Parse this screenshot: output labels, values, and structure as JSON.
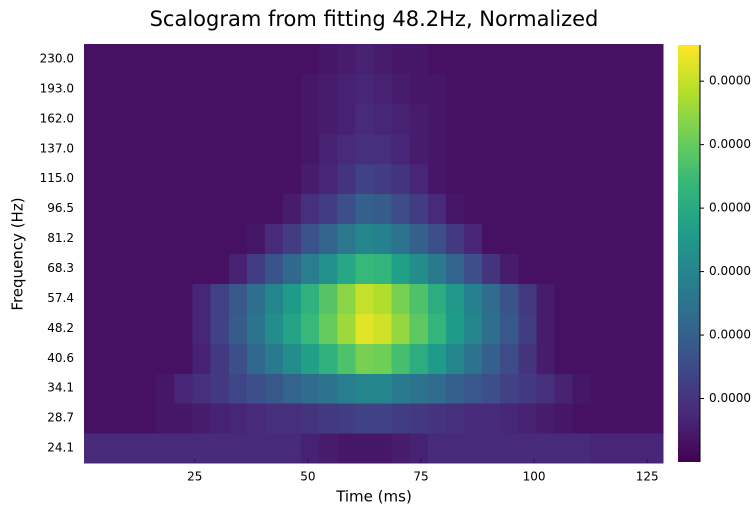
{
  "chart_data": {
    "type": "heatmap",
    "title": "Scalogram from fitting 48.2Hz, Normalized",
    "xlabel": "Time (ms)",
    "ylabel": "Frequency (Hz)",
    "x": [
      2.5,
      6.5,
      10.5,
      14.5,
      18.5,
      22.5,
      26.5,
      30.5,
      34.5,
      38.5,
      42.5,
      46.5,
      50.5,
      54.5,
      58.5,
      62.5,
      66.5,
      70.5,
      74.5,
      78.5,
      82.5,
      86.5,
      90.5,
      94.5,
      98.5,
      102.5,
      106.5,
      110.5,
      114.5,
      118.5,
      122.5,
      126.5
    ],
    "xlim": [
      0.5,
      128.5
    ],
    "xticks": [
      25,
      50,
      75,
      100,
      125
    ],
    "y_categories": [
      "24.1",
      "28.7",
      "34.1",
      "40.6",
      "48.2",
      "57.4",
      "68.3",
      "81.2",
      "96.5",
      "115.0",
      "137.0",
      "162.0",
      "193.0",
      "230.0"
    ],
    "colormap": "viridis",
    "zlim": [
      0,
      6.57e-05
    ],
    "zticks": [
      {
        "value": 1e-05,
        "label": "0.0000"
      },
      {
        "value": 2e-05,
        "label": "0.0000"
      },
      {
        "value": 3e-05,
        "label": "0.0000"
      },
      {
        "value": 4e-05,
        "label": "0.0000"
      },
      {
        "value": 5e-05,
        "label": "0.0000"
      },
      {
        "value": 6e-05,
        "label": "0.0000"
      }
    ],
    "z": [
      [
        8e-06,
        8e-06,
        8e-06,
        8e-06,
        8e-06,
        8e-06,
        8e-06,
        8e-06,
        8e-06,
        8e-06,
        8e-06,
        8e-06,
        6e-06,
        5e-06,
        4e-06,
        4e-06,
        4e-06,
        5e-06,
        6e-06,
        8e-06,
        8e-06,
        8e-06,
        8e-06,
        8e-06,
        8e-06,
        8e-06,
        8e-06,
        8e-06,
        7e-06,
        7e-06,
        7e-06,
        7e-06
      ],
      [
        3e-06,
        3e-06,
        3e-06,
        3e-06,
        4e-06,
        4e-06,
        5e-06,
        6e-06,
        7e-06,
        8e-06,
        9e-06,
        9e-06,
        1e-05,
        1.1e-05,
        1.2e-05,
        1.3e-05,
        1.3e-05,
        1.2e-05,
        1.1e-05,
        1e-05,
        9e-06,
        8e-06,
        8e-06,
        7e-06,
        6e-06,
        5e-06,
        4e-06,
        3e-06,
        3e-06,
        3e-06,
        3e-06,
        3e-06
      ],
      [
        3e-06,
        3e-06,
        3e-06,
        3e-06,
        4e-06,
        7e-06,
        9e-06,
        1.1e-05,
        1.4e-05,
        1.6e-05,
        1.8e-05,
        2.1e-05,
        2.3e-05,
        2.5e-05,
        2.8e-05,
        3e-05,
        3e-05,
        2.7e-05,
        2.5e-05,
        2.3e-05,
        2e-05,
        1.8e-05,
        1.6e-05,
        1.3e-05,
        1.1e-05,
        9e-06,
        6e-06,
        4e-06,
        3e-06,
        3e-06,
        3e-06,
        3e-06
      ],
      [
        3e-06,
        3e-06,
        3e-06,
        3e-06,
        3e-06,
        3e-06,
        6e-06,
        1.1e-05,
        1.6e-05,
        2.2e-05,
        2.7e-05,
        3.2e-05,
        3.7e-05,
        4.2e-05,
        4.7e-05,
        5.2e-05,
        5.1e-05,
        4.6e-05,
        4.1e-05,
        3.6e-05,
        3e-05,
        2.5e-05,
        2e-05,
        1.5e-05,
        1e-05,
        5e-06,
        3e-06,
        3e-06,
        3e-06,
        3e-06,
        3e-06,
        3e-06
      ],
      [
        3e-06,
        3e-06,
        3e-06,
        3e-06,
        3e-06,
        3e-06,
        7e-06,
        1.3e-05,
        1.9e-05,
        2.5e-05,
        3.2e-05,
        3.8e-05,
        4.4e-05,
        5e-05,
        5.6e-05,
        6.3e-05,
        6.1e-05,
        5.5e-05,
        4.9e-05,
        4.3e-05,
        3.6e-05,
        3e-05,
        2.4e-05,
        1.8e-05,
        1.2e-05,
        5e-06,
        3e-06,
        3e-06,
        3e-06,
        3e-06,
        3e-06,
        3e-06
      ],
      [
        3e-06,
        3e-06,
        3e-06,
        3e-06,
        3e-06,
        3e-06,
        7e-06,
        1.3e-05,
        1.8e-05,
        2.4e-05,
        3e-05,
        3.6e-05,
        4.2e-05,
        4.8e-05,
        5.4e-05,
        6e-05,
        5.8e-05,
        5.2e-05,
        4.7e-05,
        4.1e-05,
        3.5e-05,
        2.9e-05,
        2.3e-05,
        1.7e-05,
        1.1e-05,
        5e-06,
        3e-06,
        3e-06,
        3e-06,
        3e-06,
        3e-06,
        3e-06
      ],
      [
        3e-06,
        3e-06,
        3e-06,
        3e-06,
        3e-06,
        3e-06,
        3e-06,
        3e-06,
        6e-06,
        1.2e-05,
        1.7e-05,
        2.2e-05,
        2.8e-05,
        3.3e-05,
        3.9e-05,
        4.4e-05,
        4.3e-05,
        3.7e-05,
        3.2e-05,
        2.7e-05,
        2.1e-05,
        1.6e-05,
        1e-05,
        5e-06,
        3e-06,
        3e-06,
        3e-06,
        3e-06,
        3e-06,
        3e-06,
        3e-06,
        3e-06
      ],
      [
        3e-06,
        3e-06,
        3e-06,
        3e-06,
        3e-06,
        3e-06,
        3e-06,
        3e-06,
        3e-06,
        4e-06,
        8e-06,
        1.2e-05,
        1.7e-05,
        2.1e-05,
        2.6e-05,
        3e-05,
        2.9e-05,
        2.5e-05,
        2e-05,
        1.6e-05,
        1.1e-05,
        7e-06,
        3e-06,
        3e-06,
        3e-06,
        3e-06,
        3e-06,
        3e-06,
        3e-06,
        3e-06,
        3e-06,
        3e-06
      ],
      [
        3e-06,
        3e-06,
        3e-06,
        3e-06,
        3e-06,
        3e-06,
        3e-06,
        3e-06,
        3e-06,
        3e-06,
        3e-06,
        5e-06,
        9e-06,
        1.2e-05,
        1.6e-05,
        2e-05,
        1.9e-05,
        1.5e-05,
        1.2e-05,
        8e-06,
        4e-06,
        3e-06,
        3e-06,
        3e-06,
        3e-06,
        3e-06,
        3e-06,
        3e-06,
        3e-06,
        3e-06,
        3e-06,
        3e-06
      ],
      [
        3e-06,
        3e-06,
        3e-06,
        3e-06,
        3e-06,
        3e-06,
        3e-06,
        3e-06,
        3e-06,
        3e-06,
        3e-06,
        3e-06,
        5e-06,
        7e-06,
        1e-05,
        1.3e-05,
        1.2e-05,
        1e-05,
        7e-06,
        4e-06,
        3e-06,
        3e-06,
        3e-06,
        3e-06,
        3e-06,
        3e-06,
        3e-06,
        3e-06,
        3e-06,
        3e-06,
        3e-06,
        3e-06
      ],
      [
        3e-06,
        3e-06,
        3e-06,
        3e-06,
        3e-06,
        3e-06,
        3e-06,
        3e-06,
        3e-06,
        3e-06,
        3e-06,
        3e-06,
        4e-06,
        6e-06,
        8e-06,
        9e-06,
        9e-06,
        7e-06,
        5e-06,
        4e-06,
        3e-06,
        3e-06,
        3e-06,
        3e-06,
        3e-06,
        3e-06,
        3e-06,
        3e-06,
        3e-06,
        3e-06,
        3e-06,
        3e-06
      ],
      [
        3e-06,
        3e-06,
        3e-06,
        3e-06,
        3e-06,
        3e-06,
        3e-06,
        3e-06,
        3e-06,
        3e-06,
        3e-06,
        3e-06,
        4e-06,
        5e-06,
        6e-06,
        8e-06,
        7e-06,
        6e-06,
        5e-06,
        4e-06,
        3e-06,
        3e-06,
        3e-06,
        3e-06,
        3e-06,
        3e-06,
        3e-06,
        3e-06,
        3e-06,
        3e-06,
        3e-06,
        3e-06
      ],
      [
        3e-06,
        3e-06,
        3e-06,
        3e-06,
        3e-06,
        3e-06,
        3e-06,
        3e-06,
        3e-06,
        3e-06,
        3e-06,
        3e-06,
        4e-06,
        5e-06,
        6e-06,
        7e-06,
        6e-06,
        5e-06,
        4e-06,
        4e-06,
        3e-06,
        3e-06,
        3e-06,
        3e-06,
        3e-06,
        3e-06,
        3e-06,
        3e-06,
        3e-06,
        3e-06,
        3e-06,
        3e-06
      ],
      [
        3e-06,
        3e-06,
        3e-06,
        3e-06,
        3e-06,
        3e-06,
        3e-06,
        3e-06,
        3e-06,
        3e-06,
        3e-06,
        3e-06,
        3e-06,
        4e-06,
        5e-06,
        6e-06,
        5e-06,
        4e-06,
        4e-06,
        3e-06,
        3e-06,
        3e-06,
        3e-06,
        3e-06,
        3e-06,
        3e-06,
        3e-06,
        3e-06,
        3e-06,
        3e-06,
        3e-06,
        3e-06
      ]
    ]
  }
}
